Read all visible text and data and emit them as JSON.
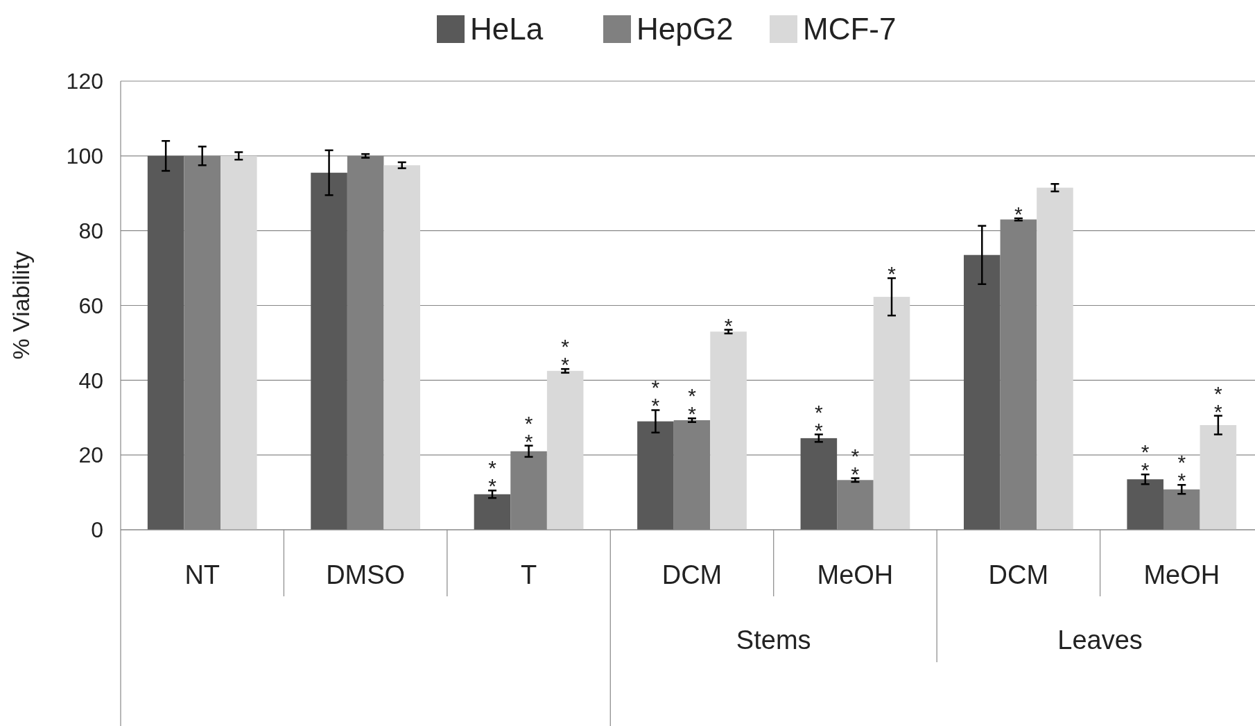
{
  "chart_data": {
    "type": "bar",
    "ylabel": "%  Viability",
    "categories": [
      "NT",
      "DMSO",
      "T",
      "DCM",
      "MeOH",
      "DCM",
      "MeOH"
    ],
    "series": [
      {
        "name": "HeLa",
        "color": "#595959",
        "values": [
          100,
          95.5,
          9.5,
          29,
          24.5,
          73.5,
          13.5
        ],
        "errors": [
          4,
          6,
          1,
          3,
          1,
          7.8,
          1.3
        ],
        "value_labels": [
          null,
          null,
          "**",
          "**",
          "**",
          null,
          "**"
        ]
      },
      {
        "name": "HepG2",
        "color": "#808080",
        "values": [
          100,
          100,
          21,
          29.3,
          13.3,
          83,
          10.8
        ],
        "errors": [
          2.5,
          0.5,
          1.5,
          0.5,
          0.5,
          0.3,
          1.2
        ],
        "value_labels": [
          null,
          null,
          "**",
          "**",
          "**",
          "*",
          "**"
        ]
      },
      {
        "name": "MCF-7",
        "color": "#d9d9d9",
        "values": [
          100,
          97.5,
          42.5,
          53,
          62.3,
          91.5,
          28
        ],
        "errors": [
          1,
          0.8,
          0.5,
          0.5,
          5,
          1,
          2.5
        ],
        "value_labels": [
          null,
          null,
          "**",
          "*",
          "*",
          null,
          "**"
        ]
      }
    ],
    "annotations": [
      "Stems",
      "Leaves"
    ],
    "ylim": [
      0,
      120
    ],
    "yticks": [
      0,
      20,
      40,
      60,
      80,
      100,
      120
    ],
    "grid": "y",
    "legend": "top"
  }
}
